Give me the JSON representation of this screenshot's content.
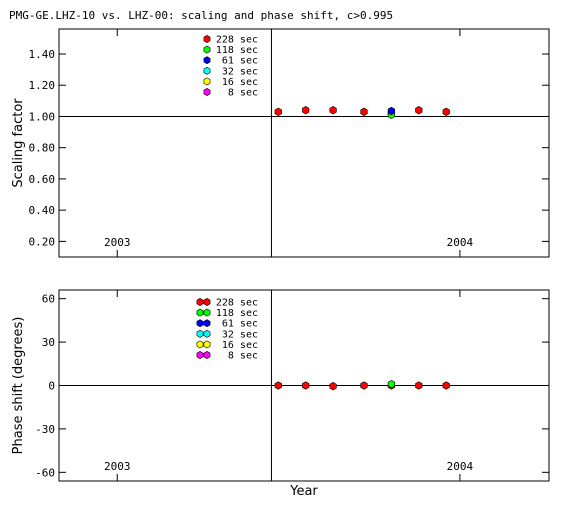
{
  "title": "PMG-GE.LHZ-10 vs. LHZ-00: scaling and phase shift, c>0.995",
  "chart_data": [
    {
      "type": "scatter",
      "ylabel": "Scaling factor",
      "ylim": [
        0.1,
        1.56
      ],
      "yticks": [
        0.2,
        0.4,
        0.6,
        0.8,
        1.0,
        1.2,
        1.4
      ],
      "ytick_labels": [
        "0.20",
        "0.40",
        "0.60",
        "0.80",
        "1.00",
        "1.20",
        "1.40"
      ],
      "reference_y": 1.0,
      "xlim": [
        2002.83,
        2004.26
      ],
      "xticks": [
        2003,
        2004
      ],
      "xtick_labels": [
        "2003",
        "2004"
      ],
      "vline_x": 2003.45,
      "series": [
        {
          "name": "228 sec",
          "color": "#ff0000",
          "x": [
            2003.47,
            2003.55,
            2003.63,
            2003.72,
            2003.8,
            2003.88,
            2003.96
          ],
          "y": [
            1.03,
            1.04,
            1.04,
            1.03,
            1.02,
            1.04,
            1.03
          ]
        },
        {
          "name": "118 sec",
          "color": "#00ff00",
          "x": [
            2003.8
          ],
          "y": [
            1.01
          ]
        },
        {
          "name": "61 sec",
          "color": "#0000ff",
          "x": [
            2003.8
          ],
          "y": [
            1.035
          ]
        },
        {
          "name": "32 sec",
          "color": "#00ffff",
          "x": [],
          "y": []
        },
        {
          "name": "16 sec",
          "color": "#ffff00",
          "x": [],
          "y": []
        },
        {
          "name": "8 sec",
          "color": "#ff00ff",
          "x": [],
          "y": []
        }
      ]
    },
    {
      "type": "scatter",
      "ylabel": "Phase shift (degrees)",
      "xlabel": "Year",
      "ylim": [
        -66,
        66
      ],
      "yticks": [
        -60,
        -30,
        0,
        30,
        60
      ],
      "ytick_labels": [
        "-60",
        "-30",
        "0",
        "30",
        "60"
      ],
      "reference_y": 0,
      "xlim": [
        2002.83,
        2004.26
      ],
      "xticks": [
        2003,
        2004
      ],
      "xtick_labels": [
        "2003",
        "2004"
      ],
      "vline_x": 2003.45,
      "series": [
        {
          "name": "228 sec",
          "color": "#ff0000",
          "x": [
            2003.47,
            2003.55,
            2003.63,
            2003.72,
            2003.8,
            2003.88,
            2003.96
          ],
          "y": [
            0,
            0,
            -0.5,
            0,
            0,
            0,
            0
          ]
        },
        {
          "name": "118 sec",
          "color": "#00ff00",
          "x": [
            2003.8
          ],
          "y": [
            1
          ]
        },
        {
          "name": "61 sec",
          "color": "#0000ff",
          "x": [],
          "y": []
        },
        {
          "name": "32 sec",
          "color": "#00ffff",
          "x": [],
          "y": []
        },
        {
          "name": "16 sec",
          "color": "#ffff00",
          "x": [],
          "y": []
        },
        {
          "name": "8 sec",
          "color": "#ff00ff",
          "x": [],
          "y": []
        }
      ]
    }
  ]
}
